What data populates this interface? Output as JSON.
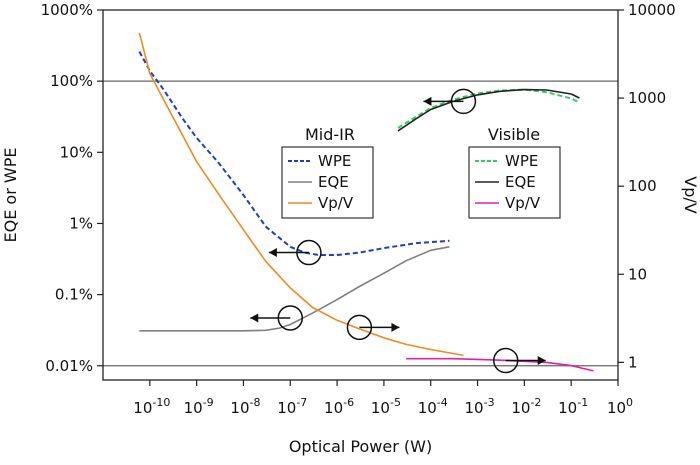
{
  "chart_data": {
    "type": "line",
    "title": "",
    "xlabel": "Optical Power (W)",
    "ylabel_left": "EQE or WPE",
    "ylabel_right": "Vp/V",
    "x_scale": "log",
    "xlim": [
      1e-11,
      1
    ],
    "x_ticks": [
      {
        "value": 1e-10,
        "base": "10",
        "exp": "-10"
      },
      {
        "value": 1e-09,
        "base": "10",
        "exp": "-9"
      },
      {
        "value": 1e-08,
        "base": "10",
        "exp": "-8"
      },
      {
        "value": 1e-07,
        "base": "10",
        "exp": "-7"
      },
      {
        "value": 1e-06,
        "base": "10",
        "exp": "-6"
      },
      {
        "value": 1e-05,
        "base": "10",
        "exp": "-5"
      },
      {
        "value": 0.0001,
        "base": "10",
        "exp": "-4"
      },
      {
        "value": 0.001,
        "base": "10",
        "exp": "-3"
      },
      {
        "value": 0.01,
        "base": "10",
        "exp": "-2"
      },
      {
        "value": 0.1,
        "base": "10",
        "exp": "-1"
      },
      {
        "value": 1,
        "base": "10",
        "exp": "0"
      }
    ],
    "y_left_scale": "log",
    "y_left_ticks": [
      {
        "value": 10,
        "label": "1000%"
      },
      {
        "value": 1,
        "label": "100%"
      },
      {
        "value": 0.1,
        "label": "10%"
      },
      {
        "value": 0.01,
        "label": "1%"
      },
      {
        "value": 0.001,
        "label": "0.1%"
      },
      {
        "value": 0.0001,
        "label": "0.01%"
      }
    ],
    "y_right_scale": "log",
    "y_right_ticks": [
      {
        "value": 10000,
        "label": "10000"
      },
      {
        "value": 1000,
        "label": "1000"
      },
      {
        "value": 100,
        "label": "100"
      },
      {
        "value": 10,
        "label": "10"
      },
      {
        "value": 1,
        "label": "1"
      }
    ],
    "reference_lines": [
      {
        "axis": "left",
        "value": 1
      },
      {
        "axis": "left",
        "value": 0.0001
      }
    ],
    "legends": [
      {
        "title": "Mid-IR",
        "entries": [
          {
            "label": "WPE",
            "color": "#1f3fbf",
            "style": "dashed"
          },
          {
            "label": "EQE",
            "color": "#808080",
            "style": "solid"
          },
          {
            "label": "Vp/V",
            "color": "#f08a24",
            "style": "solid"
          }
        ]
      },
      {
        "title": "Visible",
        "entries": [
          {
            "label": "WPE",
            "color": "#33cc66",
            "style": "dashed"
          },
          {
            "label": "EQE",
            "color": "#222222",
            "style": "solid"
          },
          {
            "label": "Vp/V",
            "color": "#e020a8",
            "style": "solid"
          }
        ]
      }
    ],
    "series": [
      {
        "group": "Mid-IR",
        "name": "WPE",
        "axis": "left",
        "color": "#1f3fbf",
        "style": "dashed",
        "x": [
          6e-11,
          1e-10,
          2e-10,
          5e-10,
          1e-09,
          3e-09,
          1e-08,
          3e-08,
          1e-07,
          2e-07,
          4e-07,
          1e-06,
          3e-06,
          1e-05,
          5e-05,
          0.00025
        ],
        "y": [
          2.6,
          1.4,
          0.75,
          0.3,
          0.16,
          0.07,
          0.025,
          0.009,
          0.0047,
          0.0039,
          0.0036,
          0.0036,
          0.0039,
          0.0045,
          0.0053,
          0.0057
        ]
      },
      {
        "group": "Mid-IR",
        "name": "EQE",
        "axis": "left",
        "color": "#808080",
        "style": "solid",
        "x": [
          6e-11,
          1e-10,
          1e-09,
          1e-08,
          3e-08,
          6e-08,
          1e-07,
          3e-07,
          1e-06,
          3e-06,
          1e-05,
          3e-05,
          0.0001,
          0.00025
        ],
        "y": [
          0.00031,
          0.00031,
          0.00031,
          0.00031,
          0.000315,
          0.00034,
          0.00038,
          0.00055,
          0.00085,
          0.0013,
          0.002,
          0.003,
          0.0042,
          0.0047
        ]
      },
      {
        "group": "Mid-IR",
        "name": "Vp/V",
        "axis": "right",
        "color": "#f08a24",
        "style": "solid",
        "x": [
          6e-11,
          1e-10,
          2e-10,
          5e-10,
          1e-09,
          3e-09,
          1e-08,
          3e-08,
          1e-07,
          3e-07,
          1e-06,
          3e-06,
          1e-05,
          3e-05,
          0.0001,
          0.0005
        ],
        "y": [
          5500,
          1900,
          950,
          380,
          190,
          80,
          32,
          14,
          7,
          4.2,
          3,
          2.4,
          1.9,
          1.6,
          1.4,
          1.2
        ]
      },
      {
        "group": "Visible",
        "name": "WPE",
        "axis": "left",
        "color": "#33cc66",
        "style": "dashed",
        "x": [
          2e-05,
          5e-05,
          0.0001,
          0.0003,
          0.001,
          0.003,
          0.01,
          0.03,
          0.1,
          0.15
        ],
        "y": [
          0.22,
          0.32,
          0.42,
          0.55,
          0.67,
          0.74,
          0.76,
          0.7,
          0.57,
          0.5
        ]
      },
      {
        "group": "Visible",
        "name": "EQE",
        "axis": "left",
        "color": "#222222",
        "style": "solid",
        "x": [
          2e-05,
          5e-05,
          0.0001,
          0.0003,
          0.001,
          0.003,
          0.01,
          0.03,
          0.1,
          0.15
        ],
        "y": [
          0.2,
          0.3,
          0.4,
          0.52,
          0.64,
          0.72,
          0.76,
          0.75,
          0.66,
          0.58
        ]
      },
      {
        "group": "Visible",
        "name": "Vp/V",
        "axis": "right",
        "color": "#e020a8",
        "style": "solid",
        "x": [
          3e-05,
          0.0001,
          0.0003,
          0.001,
          0.003,
          0.01,
          0.03,
          0.1,
          0.3
        ],
        "y": [
          1.1,
          1.1,
          1.1,
          1.08,
          1.06,
          1.03,
          1.0,
          0.92,
          0.8
        ]
      }
    ],
    "annotations": [
      {
        "type": "circle-arrow",
        "x": 1e-07,
        "axis": "left",
        "y": 0.00047,
        "direction": "left"
      },
      {
        "type": "circle-arrow",
        "x": 2.5e-07,
        "axis": "left",
        "y": 0.0039,
        "direction": "left"
      },
      {
        "type": "circle-arrow",
        "x": 0.0005,
        "axis": "left",
        "y": 0.52,
        "direction": "left"
      },
      {
        "type": "circle-arrow",
        "x": 3e-06,
        "axis": "right",
        "y": 2.5,
        "direction": "right"
      },
      {
        "type": "circle-arrow",
        "x": 0.004,
        "axis": "right",
        "y": 1.05,
        "direction": "right"
      }
    ]
  }
}
